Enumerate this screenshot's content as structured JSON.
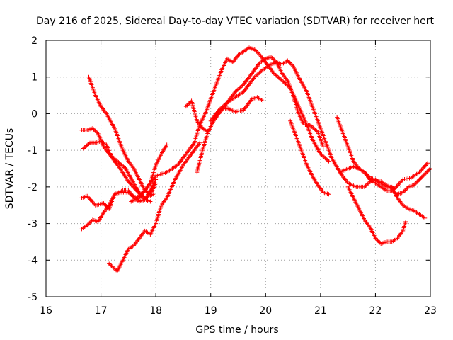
{
  "chart_data": {
    "type": "scatter",
    "title": "Day 216 of 2025, Sidereal Day-to-day VTEC variation (SDTVAR) for receiver hert",
    "xlabel": "GPS time / hours",
    "ylabel": "SDTVAR / TECUs",
    "xlim": [
      16,
      23
    ],
    "ylim": [
      -5,
      2
    ],
    "xticks": [
      16,
      17,
      18,
      19,
      20,
      21,
      22,
      23
    ],
    "yticks": [
      2,
      1,
      0,
      -1,
      -2,
      -3,
      -4,
      -5
    ],
    "grid": true,
    "marker": "+",
    "color": "#ff0000",
    "series": [
      {
        "name": "track-1",
        "x": [
          16.78,
          16.9,
          17.0,
          17.1,
          17.25,
          17.4,
          17.5,
          17.6,
          17.7,
          17.8,
          17.9,
          18.0
        ],
        "y": [
          1.0,
          0.5,
          0.2,
          0.0,
          -0.4,
          -1.0,
          -1.3,
          -1.5,
          -1.8,
          -2.1,
          -2.2,
          -1.9
        ]
      },
      {
        "name": "track-2",
        "x": [
          16.68,
          16.8,
          16.9,
          17.0,
          17.1,
          17.2,
          17.35,
          17.5,
          17.65,
          17.8,
          17.95
        ],
        "y": [
          -0.95,
          -0.8,
          -0.8,
          -0.75,
          -0.85,
          -1.2,
          -1.5,
          -1.85,
          -2.1,
          -2.3,
          -2.2
        ]
      },
      {
        "name": "track-3",
        "x": [
          16.65,
          16.75,
          16.85,
          16.95,
          17.05,
          17.15,
          17.3,
          17.45,
          17.6,
          17.75,
          17.9
        ],
        "y": [
          -0.45,
          -0.45,
          -0.4,
          -0.55,
          -0.9,
          -1.1,
          -1.3,
          -1.5,
          -1.9,
          -2.3,
          -2.4
        ]
      },
      {
        "name": "track-4",
        "x": [
          16.65,
          16.75,
          16.9,
          17.05,
          17.15,
          17.25,
          17.4,
          17.5,
          17.6,
          17.7,
          17.8,
          17.9,
          18.0
        ],
        "y": [
          -2.3,
          -2.25,
          -2.5,
          -2.45,
          -2.6,
          -2.2,
          -2.1,
          -2.1,
          -2.3,
          -2.4,
          -2.35,
          -2.1,
          -1.8
        ]
      },
      {
        "name": "track-5",
        "x": [
          16.65,
          16.75,
          16.85,
          16.95,
          17.05,
          17.15,
          17.25,
          17.35,
          17.5,
          17.65,
          17.8,
          17.9,
          18.0,
          18.1,
          18.2
        ],
        "y": [
          -3.15,
          -3.05,
          -2.9,
          -2.95,
          -2.7,
          -2.5,
          -2.2,
          -2.15,
          -2.15,
          -2.3,
          -2.1,
          -1.9,
          -1.4,
          -1.1,
          -0.85
        ]
      },
      {
        "name": "track-6",
        "x": [
          17.15,
          17.3,
          17.4,
          17.5,
          17.6,
          17.7,
          17.8,
          17.9,
          18.0,
          18.1,
          18.2,
          18.35,
          18.5,
          18.65,
          18.8
        ],
        "y": [
          -4.1,
          -4.3,
          -4.0,
          -3.7,
          -3.6,
          -3.4,
          -3.2,
          -3.3,
          -3.0,
          -2.5,
          -2.3,
          -1.8,
          -1.4,
          -1.1,
          -0.8
        ]
      },
      {
        "name": "track-7",
        "x": [
          17.55,
          17.7,
          17.85,
          18.0,
          18.2,
          18.4,
          18.55,
          18.7,
          18.8,
          18.9,
          19.0,
          19.1,
          19.2,
          19.3,
          19.4,
          19.5,
          19.6,
          19.7,
          19.8,
          19.9,
          20.0,
          20.15,
          20.3,
          20.45,
          20.6,
          20.75,
          20.85,
          21.0,
          21.15
        ],
        "y": [
          -2.4,
          -2.3,
          -2.0,
          -1.7,
          -1.6,
          -1.4,
          -1.1,
          -0.8,
          -0.3,
          0.0,
          0.4,
          0.8,
          1.2,
          1.5,
          1.4,
          1.6,
          1.7,
          1.8,
          1.75,
          1.6,
          1.4,
          1.1,
          0.9,
          0.7,
          0.2,
          -0.3,
          -0.7,
          -1.1,
          -1.3
        ]
      },
      {
        "name": "track-8",
        "x": [
          18.55,
          18.65,
          18.75,
          18.85,
          18.95,
          19.05,
          19.15,
          19.3,
          19.45,
          19.6,
          19.75,
          19.85,
          19.95
        ],
        "y": [
          0.2,
          0.35,
          -0.2,
          -0.4,
          -0.5,
          -0.2,
          0.1,
          0.15,
          0.05,
          0.1,
          0.4,
          0.45,
          0.35
        ]
      },
      {
        "name": "track-9",
        "x": [
          18.75,
          18.85,
          18.95,
          19.05,
          19.15,
          19.3,
          19.45,
          19.6,
          19.7,
          19.8,
          19.9,
          20.0,
          20.1,
          20.2,
          20.3,
          20.4,
          20.5,
          20.6,
          20.7,
          20.8,
          20.95,
          21.05
        ],
        "y": [
          -1.6,
          -1.0,
          -0.5,
          -0.2,
          0.0,
          0.3,
          0.6,
          0.8,
          1.0,
          1.2,
          1.4,
          1.5,
          1.55,
          1.4,
          1.1,
          0.9,
          0.5,
          0.0,
          -0.3,
          -0.3,
          -0.5,
          -0.9
        ]
      },
      {
        "name": "track-10",
        "x": [
          19.0,
          19.15,
          19.3,
          19.45,
          19.6,
          19.7,
          19.8,
          19.95,
          20.1,
          20.2,
          20.3,
          20.4,
          20.5,
          20.6,
          20.75,
          20.9,
          21.05,
          21.2,
          21.35,
          21.5,
          21.65,
          21.8,
          21.95,
          22.1,
          22.25,
          22.35,
          22.5,
          22.65,
          22.8,
          22.95
        ],
        "y": [
          -0.2,
          0.1,
          0.3,
          0.45,
          0.6,
          0.8,
          1.0,
          1.2,
          1.35,
          1.4,
          1.35,
          1.45,
          1.3,
          1.0,
          0.6,
          0.0,
          -0.6,
          -1.2,
          -1.6,
          -1.9,
          -2.0,
          -2.0,
          -1.8,
          -1.85,
          -2.0,
          -2.05,
          -1.8,
          -1.75,
          -1.6,
          -1.35
        ]
      },
      {
        "name": "track-11",
        "x": [
          20.45,
          20.55,
          20.65,
          20.75,
          20.85,
          20.95,
          21.05,
          21.15
        ],
        "y": [
          -0.2,
          -0.6,
          -1.0,
          -1.4,
          -1.7,
          -1.95,
          -2.15,
          -2.2
        ]
      },
      {
        "name": "track-12",
        "x": [
          21.3,
          21.4,
          21.5,
          21.6,
          21.7,
          21.8,
          21.9,
          22.0,
          22.1,
          22.2,
          22.3,
          22.4,
          22.5,
          22.6,
          22.7,
          22.8,
          22.9,
          23.0
        ],
        "y": [
          -0.1,
          -0.5,
          -0.9,
          -1.3,
          -1.5,
          -1.6,
          -1.8,
          -1.9,
          -2.0,
          -2.1,
          -2.1,
          -2.2,
          -2.15,
          -2.0,
          -1.95,
          -1.8,
          -1.65,
          -1.5
        ]
      },
      {
        "name": "track-13",
        "x": [
          21.35,
          21.5,
          21.6,
          21.7,
          21.8,
          21.9,
          22.0,
          22.1,
          22.2,
          22.3,
          22.4,
          22.5,
          22.6,
          22.7,
          22.8,
          22.9
        ],
        "y": [
          -1.6,
          -1.5,
          -1.45,
          -1.5,
          -1.6,
          -1.75,
          -1.8,
          -1.9,
          -2.0,
          -2.0,
          -2.3,
          -2.5,
          -2.6,
          -2.65,
          -2.75,
          -2.85
        ]
      },
      {
        "name": "track-14",
        "x": [
          21.5,
          21.6,
          21.7,
          21.8,
          21.9,
          22.0,
          22.1,
          22.2,
          22.3,
          22.4,
          22.5,
          22.55
        ],
        "y": [
          -2.0,
          -2.3,
          -2.6,
          -2.9,
          -3.1,
          -3.4,
          -3.55,
          -3.5,
          -3.5,
          -3.4,
          -3.2,
          -2.95
        ]
      }
    ]
  }
}
